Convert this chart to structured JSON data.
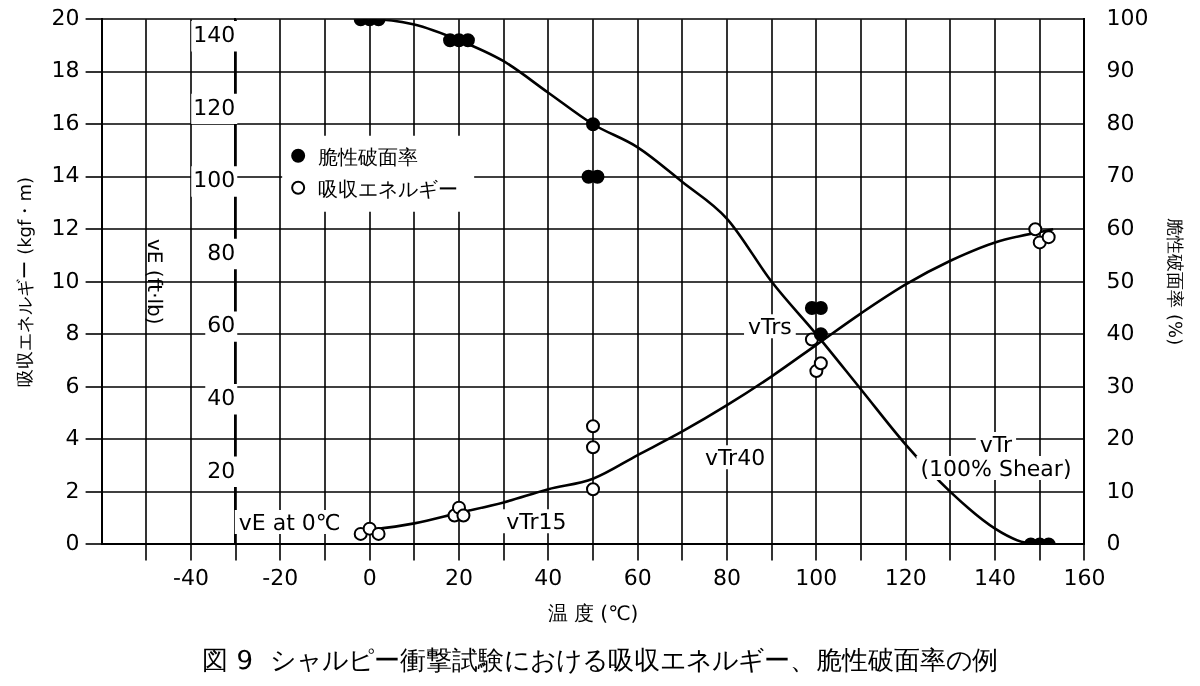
{
  "chart_data": {
    "type": "scatter",
    "title": "図 9  シャルピー衝撃試験における吸収エネルギー、脆性破面率の例",
    "xlabel": "温 度 (℃)",
    "ylabel": "吸収エネルギー (kgf・m)",
    "y2label": "脆性破面率 (%)",
    "y3label": "vE (ft·lb)",
    "xlim": [
      -60,
      160
    ],
    "xticks": [
      {
        "value": -50,
        "label": null
      },
      -40,
      {
        "value": -30,
        "label": null
      },
      -20,
      {
        "value": -10,
        "label": null
      },
      0,
      {
        "value": 10,
        "label": null
      },
      20,
      {
        "value": 30,
        "label": null
      },
      40,
      {
        "value": 50,
        "label": null
      },
      60,
      {
        "value": 70,
        "label": null
      },
      80,
      {
        "value": 90,
        "label": null
      },
      100,
      {
        "value": 110,
        "label": null
      },
      120,
      {
        "value": 130,
        "label": null
      },
      140,
      {
        "value": 150,
        "label": null
      },
      160
    ],
    "ylim": [
      0,
      20
    ],
    "yticks": [
      0,
      2,
      4,
      6,
      8,
      10,
      12,
      14,
      16,
      18,
      20
    ],
    "y2lim": [
      0,
      100
    ],
    "y2ticks": [
      0,
      10,
      20,
      30,
      40,
      50,
      60,
      70,
      80,
      90,
      100
    ],
    "y3lim": [
      0,
      144.7
    ],
    "y3ticks": [
      20,
      40,
      60,
      80,
      100,
      120,
      140
    ],
    "grid": true,
    "legend": "top left",
    "series": [
      {
        "name": "脆性破面率",
        "axis": "y2",
        "marker": "circle",
        "color": "#000000",
        "x": [
          -2,
          0,
          2,
          18,
          20,
          22,
          50,
          49,
          51,
          99,
          101,
          101,
          148,
          150,
          152
        ],
        "values": [
          100,
          100,
          100,
          96,
          96,
          96,
          80,
          70,
          70,
          45,
          45,
          40,
          0,
          0,
          0
        ]
      },
      {
        "name": "吸収エネルギー",
        "marker": "circle",
        "color": "#ffffff",
        "x": [
          -2,
          0,
          2,
          19,
          20,
          21,
          50,
          50,
          50,
          99,
          100,
          101,
          149,
          150,
          152
        ],
        "values": [
          0.4,
          0.6,
          0.4,
          1.1,
          1.4,
          1.1,
          4.5,
          3.7,
          2.1,
          7.8,
          6.6,
          6.9,
          12.0,
          11.5,
          11.7
        ]
      },
      {
        "type": "line",
        "axis": "y2",
        "marker": "none",
        "color": "#000000",
        "x": [
          -3,
          0,
          10,
          20,
          30,
          40,
          50,
          60,
          70,
          80,
          90,
          100,
          110,
          120,
          130,
          140,
          147,
          153
        ],
        "values": [
          100,
          100,
          99,
          96,
          92,
          86,
          80,
          75.6,
          69,
          62,
          50,
          40,
          29.5,
          19,
          10,
          3,
          0.3,
          0
        ]
      },
      {
        "type": "line",
        "marker": "none",
        "color": "#000000",
        "x": [
          -3,
          0,
          10,
          20,
          30,
          40,
          50,
          60,
          70,
          80,
          90,
          100,
          110,
          120,
          130,
          140,
          153
        ],
        "values": [
          0.5,
          0.55,
          0.8,
          1.2,
          1.6,
          2.1,
          2.5,
          3.4,
          4.3,
          5.3,
          6.4,
          7.6,
          8.8,
          9.9,
          10.8,
          11.5,
          12.0
        ]
      }
    ],
    "annotations": [
      {
        "text": "vE at 0℃",
        "x": 0,
        "y": 0.55
      },
      {
        "text": "vTr15",
        "x": 40,
        "y": 2.1
      },
      "vTrs",
      {
        "text": "vTr40",
        "x": 80,
        "y": 5.3
      },
      "vTr\n(100% Shear)"
    ]
  }
}
